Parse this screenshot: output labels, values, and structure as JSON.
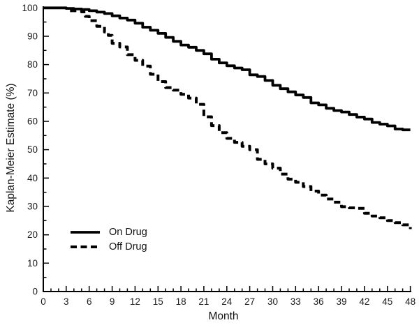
{
  "chart_data": {
    "type": "line",
    "subtype": "kaplan-meier-step",
    "title": "",
    "xlabel": "Month",
    "ylabel": "Kaplan-Meier Estimate (%)",
    "xlim": [
      0,
      48
    ],
    "ylim": [
      0,
      100
    ],
    "grid": false,
    "axis_color": "#000000",
    "background": "#ffffff",
    "xticks": {
      "major": [
        0,
        3,
        6,
        9,
        12,
        15,
        18,
        21,
        24,
        27,
        30,
        33,
        36,
        39,
        42,
        45,
        48
      ],
      "minor_step": 1
    },
    "yticks": {
      "major": [
        0,
        10,
        20,
        30,
        40,
        50,
        60,
        70,
        80,
        90,
        100
      ],
      "minor_step": 5
    },
    "legend": {
      "position": "lower-left",
      "entries": [
        "On Drug",
        "Off Drug"
      ]
    },
    "series": [
      {
        "name": "On Drug",
        "style": "solid",
        "color": "#000000",
        "points": [
          [
            0,
            100
          ],
          [
            2.5,
            100
          ],
          [
            3,
            99.8
          ],
          [
            4,
            99.6
          ],
          [
            5,
            99.4
          ],
          [
            6,
            99
          ],
          [
            7,
            98.5
          ],
          [
            8,
            98
          ],
          [
            9,
            97.2
          ],
          [
            10,
            96.4
          ],
          [
            11,
            95.7
          ],
          [
            12,
            94.6
          ],
          [
            13,
            93.2
          ],
          [
            14,
            92.1
          ],
          [
            15,
            91
          ],
          [
            16,
            89.6
          ],
          [
            17,
            88.2
          ],
          [
            18,
            86.9
          ],
          [
            19,
            86.1
          ],
          [
            20,
            85
          ],
          [
            21,
            83.8
          ],
          [
            22,
            81.9
          ],
          [
            23,
            80.6
          ],
          [
            24,
            79.6
          ],
          [
            25,
            78.8
          ],
          [
            26,
            78.2
          ],
          [
            27,
            76.4
          ],
          [
            28,
            75.8
          ],
          [
            29,
            74.4
          ],
          [
            30,
            72.7
          ],
          [
            31,
            71.5
          ],
          [
            32,
            70.4
          ],
          [
            33,
            69.3
          ],
          [
            34,
            68.4
          ],
          [
            35,
            66.5
          ],
          [
            36,
            65.8
          ],
          [
            37,
            64.6
          ],
          [
            38,
            63.8
          ],
          [
            39,
            63.3
          ],
          [
            40,
            62.4
          ],
          [
            41,
            61.5
          ],
          [
            42,
            60.8
          ],
          [
            43,
            59.6
          ],
          [
            44,
            59
          ],
          [
            45,
            58.4
          ],
          [
            46,
            57.3
          ],
          [
            47,
            57
          ],
          [
            48,
            57
          ]
        ]
      },
      {
        "name": "Off Drug",
        "style": "dashed",
        "color": "#000000",
        "points": [
          [
            3.5,
            99
          ],
          [
            5,
            98.6
          ],
          [
            5.5,
            97
          ],
          [
            6,
            95.5
          ],
          [
            7,
            93.5
          ],
          [
            8,
            91.5
          ],
          [
            8.5,
            90.3
          ],
          [
            9,
            87.5
          ],
          [
            10,
            86.2
          ],
          [
            11,
            83.5
          ],
          [
            12,
            81.5
          ],
          [
            13,
            79.5
          ],
          [
            14,
            76.6
          ],
          [
            15,
            74
          ],
          [
            16,
            71.9
          ],
          [
            17,
            71
          ],
          [
            18,
            69.5
          ],
          [
            19,
            68.2
          ],
          [
            20,
            66
          ],
          [
            21,
            61.6
          ],
          [
            22,
            58.5
          ],
          [
            23,
            56
          ],
          [
            24,
            54
          ],
          [
            25,
            52.6
          ],
          [
            26,
            51.2
          ],
          [
            27,
            50
          ],
          [
            28,
            46.6
          ],
          [
            29,
            45
          ],
          [
            30,
            43.5
          ],
          [
            31,
            41.4
          ],
          [
            32,
            39.6
          ],
          [
            33,
            38.5
          ],
          [
            34,
            37
          ],
          [
            35,
            35.4
          ],
          [
            36,
            34
          ],
          [
            37,
            32.6
          ],
          [
            38,
            31.5
          ],
          [
            39,
            29.9
          ],
          [
            40,
            29.5
          ],
          [
            41,
            29.3
          ],
          [
            42,
            27.6
          ],
          [
            43,
            26.6
          ],
          [
            44,
            26
          ],
          [
            45,
            25
          ],
          [
            46,
            24.3
          ],
          [
            47,
            23.5
          ],
          [
            48,
            22
          ]
        ]
      }
    ]
  }
}
